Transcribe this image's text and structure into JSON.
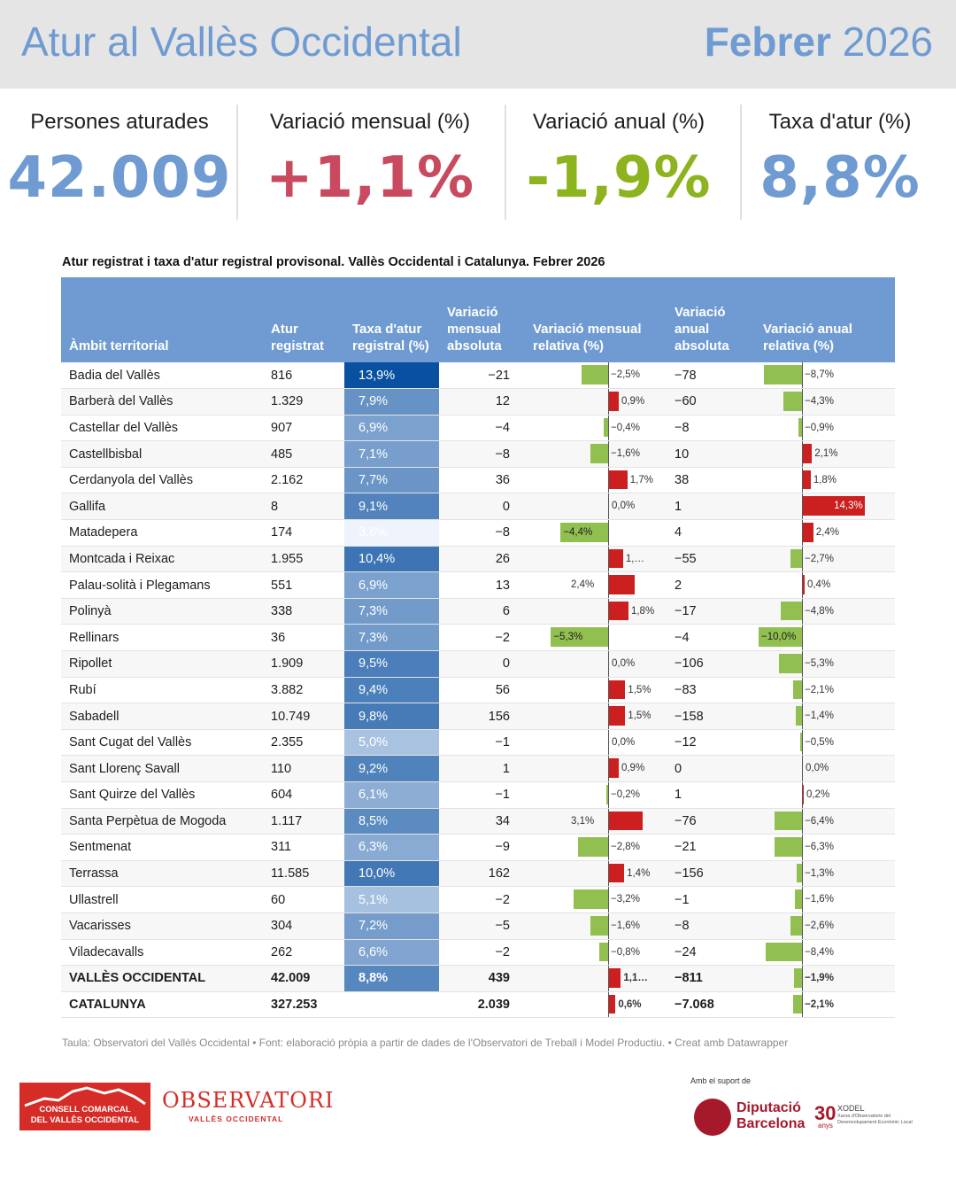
{
  "header": {
    "title": "Atur al Vallès Occidental",
    "month": "Febrer",
    "year": "2026"
  },
  "kpis": [
    {
      "label": "Persones aturades",
      "value": "42.009",
      "color": "#6f9bd2"
    },
    {
      "label": "Variació mensual (%)",
      "value": "+1,1%",
      "color": "#c94a5e"
    },
    {
      "label": "Variació anual (%)",
      "value": "-1,9%",
      "color": "#8db31e"
    },
    {
      "label": "Taxa d'atur (%)",
      "value": "8,8%",
      "color": "#6f9bd2"
    }
  ],
  "table_title": "Atur registrat i taxa d'atur registral provisonal. Vallès Occidental i Catalunya. Febrer 2026",
  "columns": [
    "Àmbit territorial",
    "Atur registrat",
    "Taxa d'atur registral (%)",
    "Variació mensual absoluta",
    "Variació mensual relativa (%)",
    "Variació anual absoluta",
    "Variació anual relativa (%)"
  ],
  "chart_data": {
    "type": "table",
    "title": "Atur registrat i taxa d'atur registral provisonal. Vallès Occidental i Catalunya. Febrer 2026",
    "rows": [
      {
        "name": "Badia del Vallès",
        "atur": "816",
        "rate": 13.9,
        "rate_label": "13,9%",
        "mabs": "−21",
        "mrel": -2.5,
        "mrel_label": "−2,5%",
        "aabs": "−78",
        "arel": -8.7,
        "arel_label": "−8,7%"
      },
      {
        "name": "Barberà del Vallès",
        "atur": "1.329",
        "rate": 7.9,
        "rate_label": "7,9%",
        "mabs": "12",
        "mrel": 0.9,
        "mrel_label": "0,9%",
        "aabs": "−60",
        "arel": -4.3,
        "arel_label": "−4,3%"
      },
      {
        "name": "Castellar del Vallès",
        "atur": "907",
        "rate": 6.9,
        "rate_label": "6,9%",
        "mabs": "−4",
        "mrel": -0.4,
        "mrel_label": "−0,4%",
        "aabs": "−8",
        "arel": -0.9,
        "arel_label": "−0,9%"
      },
      {
        "name": "Castellbisbal",
        "atur": "485",
        "rate": 7.1,
        "rate_label": "7,1%",
        "mabs": "−8",
        "mrel": -1.6,
        "mrel_label": "−1,6%",
        "aabs": "10",
        "arel": 2.1,
        "arel_label": "2,1%"
      },
      {
        "name": "Cerdanyola del Vallès",
        "atur": "2.162",
        "rate": 7.7,
        "rate_label": "7,7%",
        "mabs": "36",
        "mrel": 1.7,
        "mrel_label": "1,7%",
        "aabs": "38",
        "arel": 1.8,
        "arel_label": "1,8%"
      },
      {
        "name": "Gallifa",
        "atur": "8",
        "rate": 9.1,
        "rate_label": "9,1%",
        "mabs": "0",
        "mrel": 0.0,
        "mrel_label": "0,0%",
        "aabs": "1",
        "arel": 14.3,
        "arel_label": "14,3%"
      },
      {
        "name": "Matadepera",
        "atur": "174",
        "rate": 3.6,
        "rate_label": "3,6%",
        "mabs": "−8",
        "mrel": -4.4,
        "mrel_label": "−4,4%",
        "aabs": "4",
        "arel": 2.4,
        "arel_label": "2,4%"
      },
      {
        "name": "Montcada i Reixac",
        "atur": "1.955",
        "rate": 10.4,
        "rate_label": "10,4%",
        "mabs": "26",
        "mrel": 1.3,
        "mrel_label": "1,…",
        "aabs": "−55",
        "arel": -2.7,
        "arel_label": "−2,7%"
      },
      {
        "name": "Palau-solità i Plegamans",
        "atur": "551",
        "rate": 6.9,
        "rate_label": "6,9%",
        "mabs": "13",
        "mrel": 2.4,
        "mrel_label": "2,4%",
        "aabs": "2",
        "arel": 0.4,
        "arel_label": "0,4%"
      },
      {
        "name": "Polinyà",
        "atur": "338",
        "rate": 7.3,
        "rate_label": "7,3%",
        "mabs": "6",
        "mrel": 1.8,
        "mrel_label": "1,8%",
        "aabs": "−17",
        "arel": -4.8,
        "arel_label": "−4,8%"
      },
      {
        "name": "Rellinars",
        "atur": "36",
        "rate": 7.3,
        "rate_label": "7,3%",
        "mabs": "−2",
        "mrel": -5.3,
        "mrel_label": "−5,3%",
        "aabs": "−4",
        "arel": -10.0,
        "arel_label": "−10,0%"
      },
      {
        "name": "Ripollet",
        "atur": "1.909",
        "rate": 9.5,
        "rate_label": "9,5%",
        "mabs": "0",
        "mrel": 0.0,
        "mrel_label": "0,0%",
        "aabs": "−106",
        "arel": -5.3,
        "arel_label": "−5,3%"
      },
      {
        "name": "Rubí",
        "atur": "3.882",
        "rate": 9.4,
        "rate_label": "9,4%",
        "mabs": "56",
        "mrel": 1.5,
        "mrel_label": "1,5%",
        "aabs": "−83",
        "arel": -2.1,
        "arel_label": "−2,1%"
      },
      {
        "name": "Sabadell",
        "atur": "10.749",
        "rate": 9.8,
        "rate_label": "9,8%",
        "mabs": "156",
        "mrel": 1.5,
        "mrel_label": "1,5%",
        "aabs": "−158",
        "arel": -1.4,
        "arel_label": "−1,4%"
      },
      {
        "name": "Sant Cugat del Vallès",
        "atur": "2.355",
        "rate": 5.0,
        "rate_label": "5,0%",
        "mabs": "−1",
        "mrel": 0.0,
        "mrel_label": "0,0%",
        "aabs": "−12",
        "arel": -0.5,
        "arel_label": "−0,5%"
      },
      {
        "name": "Sant Llorenç Savall",
        "atur": "110",
        "rate": 9.2,
        "rate_label": "9,2%",
        "mabs": "1",
        "mrel": 0.9,
        "mrel_label": "0,9%",
        "aabs": "0",
        "arel": 0.0,
        "arel_label": "0,0%"
      },
      {
        "name": "Sant Quirze del Vallès",
        "atur": "604",
        "rate": 6.1,
        "rate_label": "6,1%",
        "mabs": "−1",
        "mrel": -0.2,
        "mrel_label": "−0,2%",
        "aabs": "1",
        "arel": 0.2,
        "arel_label": "0,2%"
      },
      {
        "name": "Santa Perpètua de Mogoda",
        "atur": "1.117",
        "rate": 8.5,
        "rate_label": "8,5%",
        "mabs": "34",
        "mrel": 3.1,
        "mrel_label": "3,1%",
        "aabs": "−76",
        "arel": -6.4,
        "arel_label": "−6,4%"
      },
      {
        "name": "Sentmenat",
        "atur": "311",
        "rate": 6.3,
        "rate_label": "6,3%",
        "mabs": "−9",
        "mrel": -2.8,
        "mrel_label": "−2,8%",
        "aabs": "−21",
        "arel": -6.3,
        "arel_label": "−6,3%"
      },
      {
        "name": "Terrassa",
        "atur": "11.585",
        "rate": 10.0,
        "rate_label": "10,0%",
        "mabs": "162",
        "mrel": 1.4,
        "mrel_label": "1,4%",
        "aabs": "−156",
        "arel": -1.3,
        "arel_label": "−1,3%"
      },
      {
        "name": "Ullastrell",
        "atur": "60",
        "rate": 5.1,
        "rate_label": "5,1%",
        "mabs": "−2",
        "mrel": -3.2,
        "mrel_label": "−3,2%",
        "aabs": "−1",
        "arel": -1.6,
        "arel_label": "−1,6%"
      },
      {
        "name": "Vacarisses",
        "atur": "304",
        "rate": 7.2,
        "rate_label": "7,2%",
        "mabs": "−5",
        "mrel": -1.6,
        "mrel_label": "−1,6%",
        "aabs": "−8",
        "arel": -2.6,
        "arel_label": "−2,6%"
      },
      {
        "name": "Viladecavalls",
        "atur": "262",
        "rate": 6.6,
        "rate_label": "6,6%",
        "mabs": "−2",
        "mrel": -0.8,
        "mrel_label": "−0,8%",
        "aabs": "−24",
        "arel": -8.4,
        "arel_label": "−8,4%"
      },
      {
        "name": "VALLÈS OCCIDENTAL",
        "atur": "42.009",
        "rate": 8.8,
        "rate_label": "8,8%",
        "mabs": "439",
        "mrel": 1.1,
        "mrel_label": "1,1…",
        "aabs": "−811",
        "arel": -1.9,
        "arel_label": "−1,9%",
        "bold": true
      },
      {
        "name": "CATALUNYA",
        "atur": "327.253",
        "rate": null,
        "rate_label": "",
        "mabs": "2.039",
        "mrel": 0.6,
        "mrel_label": "0,6%",
        "aabs": "−7.068",
        "arel": -2.1,
        "arel_label": "−2,1%",
        "bold": true
      }
    ]
  },
  "footnote": "Taula: Observatori del Vallès Occidental • Font: elaboració pròpia a partir de dades de l'Observatori de Treball i Model Productiu. • Creat amb Datawrapper",
  "logos": {
    "ccvo_line1": "CONSELL COMARCAL",
    "ccvo_line2": "DEL VALLÈS OCCIDENTAL",
    "obs_big": "OBSERVATORI",
    "obs_small": "VALLÈS OCCIDENTAL",
    "suport": "Amb el suport de",
    "dipu_line1": "Diputació",
    "dipu_line2": "Barcelona",
    "xodel_num": "30",
    "xodel_anys": "anys",
    "xodel_name": "XODEL",
    "xodel_sub1": "Xarxa d'Observatoris del",
    "xodel_sub2": "Desenvolupament Econòmic Local"
  }
}
